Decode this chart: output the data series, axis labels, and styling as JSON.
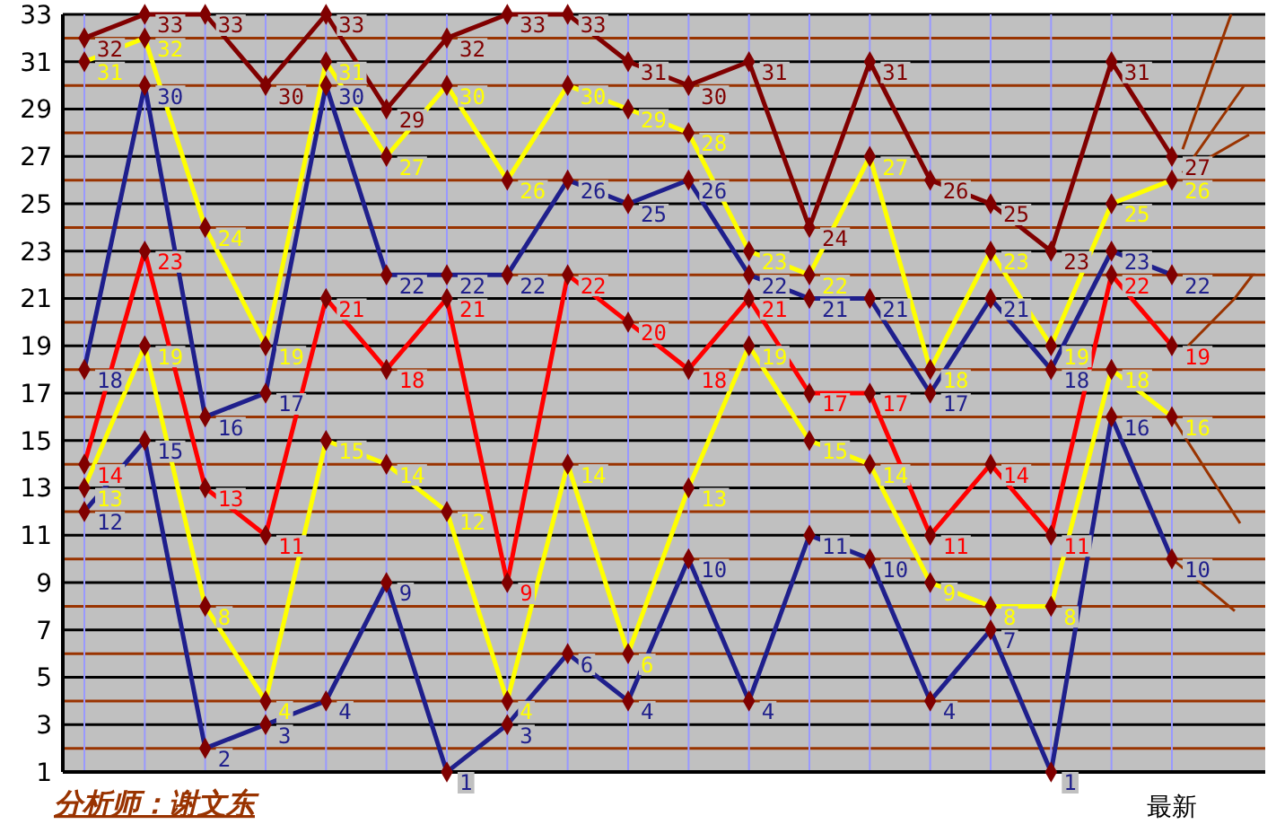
{
  "chart_data": {
    "type": "line",
    "categories": [
      null,
      null,
      null,
      null,
      null,
      null,
      null,
      null,
      null,
      null,
      null,
      null,
      null,
      null,
      null,
      null,
      null,
      null,
      "最新"
    ],
    "series": [
      {
        "color": "#800000",
        "values": [
          32,
          33,
          33,
          30,
          33,
          29,
          32,
          33,
          33,
          31,
          30,
          31,
          24,
          31,
          26,
          25,
          23,
          31,
          27
        ]
      },
      {
        "color": "#ffff00",
        "values": [
          31,
          32,
          24,
          19,
          31,
          27,
          30,
          26,
          30,
          29,
          28,
          23,
          22,
          27,
          18,
          23,
          19,
          25,
          26
        ]
      },
      {
        "color": "#1f1f8c",
        "values": [
          18,
          30,
          16,
          17,
          30,
          22,
          22,
          22,
          26,
          25,
          26,
          22,
          21,
          21,
          17,
          21,
          18,
          23,
          22
        ]
      },
      {
        "color": "#ff0000",
        "values": [
          14,
          23,
          13,
          11,
          21,
          18,
          21,
          9,
          22,
          20,
          18,
          21,
          17,
          17,
          11,
          14,
          11,
          22,
          19
        ]
      },
      {
        "color": "#ffff00",
        "values": [
          13,
          19,
          8,
          4,
          15,
          14,
          12,
          4,
          14,
          6,
          13,
          19,
          15,
          14,
          9,
          8,
          8,
          18,
          16
        ]
      },
      {
        "color": "#1f1f8c",
        "values": [
          12,
          15,
          2,
          3,
          4,
          9,
          1,
          3,
          6,
          4,
          10,
          4,
          11,
          10,
          4,
          7,
          1,
          16,
          10
        ]
      }
    ],
    "ylim": [
      1,
      33
    ],
    "yticks": [
      1,
      {
        "value": 2,
        "label": null
      },
      3,
      {
        "value": 4,
        "label": null
      },
      5,
      {
        "value": 6,
        "label": null
      },
      7,
      {
        "value": 8,
        "label": null
      },
      9,
      {
        "value": 10,
        "label": null
      },
      11,
      {
        "value": 12,
        "label": null
      },
      13,
      {
        "value": 14,
        "label": null
      },
      15,
      {
        "value": 16,
        "label": null
      },
      17,
      {
        "value": 18,
        "label": null
      },
      19,
      {
        "value": 20,
        "label": null
      },
      21,
      {
        "value": 22,
        "label": null
      },
      23,
      {
        "value": 24,
        "label": null
      },
      25,
      {
        "value": 26,
        "label": null
      },
      27,
      {
        "value": 28,
        "label": null
      },
      29,
      {
        "value": 30,
        "label": null
      },
      31,
      {
        "value": 32,
        "label": null
      },
      33
    ],
    "grid": true,
    "marker": "diamond",
    "line_style": "solid",
    "data_labels": true,
    "annotations": [
      "分析师：谢文东"
    ]
  }
}
